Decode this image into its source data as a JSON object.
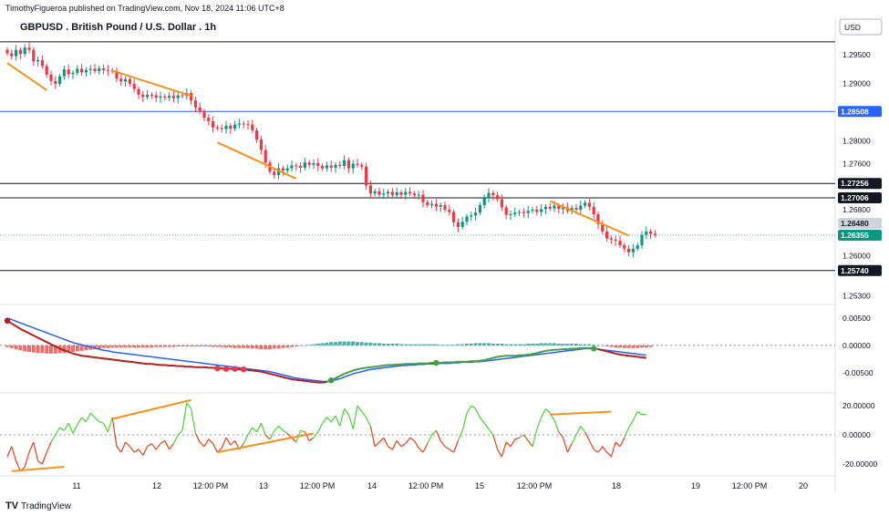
{
  "header": {
    "publisher": "TimothyFigueroa published on TradingView.com, Nov 18, 2024 11:06 UTC+8",
    "title": "GBPUSD . British Pound / U.S. Dollar . 1h",
    "currency_button": "USD"
  },
  "footer": {
    "brand": "TradingView",
    "logo_text": "TV"
  },
  "colors": {
    "up": "#089981",
    "down": "#f23645",
    "trend": "#f7931a",
    "blue_line": "#2962ff",
    "macd_signal": "#2962ff",
    "macd_line_up": "#43a047",
    "macd_line_down": "#b71c1c",
    "hist_up": "#26a69a",
    "hist_down": "#ef5350",
    "osc_up": "#4cd137",
    "osc_down": "#e84118",
    "current_price_tag": "#089981"
  },
  "chart_data": [
    {
      "type": "candlestick",
      "title": "GBPUSD . British Pound / U.S. Dollar . 1h",
      "ylim": [
        1.2515,
        1.2975
      ],
      "y_ticks": [
        "1.29500",
        "1.29000",
        "1.28000",
        "1.27600",
        "1.26800",
        "1.26000",
        "1.25300"
      ],
      "x_ticks": [
        "11",
        "12",
        "12:00 PM",
        "13",
        "12:00 PM",
        "14",
        "12:00 PM",
        "15",
        "12:00 PM",
        "18",
        "19",
        "12:00 PM",
        "20"
      ],
      "horizontal_levels": [
        {
          "value": 1.2972,
          "label": ""
        },
        {
          "value": 1.28508,
          "label": "1.28508"
        },
        {
          "value": 1.27256,
          "label": "1.27256"
        },
        {
          "value": 1.27006,
          "label": "1.27006"
        },
        {
          "value": 1.2574,
          "label": "1.25740"
        }
      ],
      "price_tags": {
        "previous_label": "1.26480",
        "current_label": "1.26355",
        "current_value": 1.26355
      },
      "trendlines": [
        {
          "start": [
            0,
            1.2935
          ],
          "end": [
            9,
            1.2888
          ]
        },
        {
          "start": [
            24,
            1.2922
          ],
          "end": [
            42,
            1.2878
          ]
        },
        {
          "start": [
            48,
            1.2797
          ],
          "end": [
            66,
            1.2734
          ]
        },
        {
          "start": [
            124,
            1.2695
          ],
          "end": [
            142,
            1.2635
          ]
        }
      ],
      "closes": [
        1.2952,
        1.2947,
        1.2958,
        1.2951,
        1.2962,
        1.2958,
        1.2938,
        1.294,
        1.293,
        1.2915,
        1.2904,
        1.2899,
        1.2912,
        1.2924,
        1.2916,
        1.2918,
        1.2925,
        1.2919,
        1.2923,
        1.2925,
        1.2921,
        1.2926,
        1.2923,
        1.2922,
        1.2921,
        1.2908,
        1.2903,
        1.2907,
        1.2899,
        1.289,
        1.288,
        1.2876,
        1.288,
        1.2879,
        1.2875,
        1.2877,
        1.2875,
        1.2878,
        1.2874,
        1.2879,
        1.2878,
        1.2883,
        1.287,
        1.2858,
        1.2851,
        1.284,
        1.2834,
        1.2823,
        1.2822,
        1.282,
        1.2826,
        1.2821,
        1.2828,
        1.283,
        1.2829,
        1.2828,
        1.2818,
        1.2802,
        1.2784,
        1.2762,
        1.2746,
        1.274,
        1.2752,
        1.2748,
        1.2752,
        1.2757,
        1.2756,
        1.2753,
        1.2762,
        1.2758,
        1.2761,
        1.2756,
        1.2752,
        1.2757,
        1.2753,
        1.2758,
        1.2756,
        1.2766,
        1.2752,
        1.276,
        1.2758,
        1.2755,
        1.2722,
        1.2708,
        1.2712,
        1.2706,
        1.2708,
        1.2711,
        1.2705,
        1.271,
        1.2706,
        1.2711,
        1.2708,
        1.2705,
        1.2706,
        1.2693,
        1.2688,
        1.269,
        1.2685,
        1.2688,
        1.268,
        1.2676,
        1.2658,
        1.265,
        1.2659,
        1.2668,
        1.267,
        1.2675,
        1.2688,
        1.27,
        1.2709,
        1.2705,
        1.2698,
        1.2684,
        1.2671,
        1.2672,
        1.2675,
        1.2676,
        1.2674,
        1.2678,
        1.268,
        1.2676,
        1.2681,
        1.2685,
        1.2682,
        1.2687,
        1.2681,
        1.2684,
        1.2678,
        1.2683,
        1.268,
        1.2687,
        1.2692,
        1.2685,
        1.2672,
        1.2655,
        1.2642,
        1.263,
        1.2628,
        1.2626,
        1.2618,
        1.2612,
        1.2606,
        1.2612,
        1.2618,
        1.2636,
        1.2642,
        1.2638,
        1.2636
      ]
    },
    {
      "type": "line",
      "name": "",
      "ylim": [
        -0.0082,
        0.0068
      ],
      "y_ticks": [
        "0.00500",
        "0.00000",
        "-0.00500"
      ],
      "signal_dots_x": [
        48,
        50,
        52,
        54,
        74,
        98,
        134
      ],
      "histogram": [
        -0.0003,
        -0.0005,
        -0.0007,
        -0.0009,
        -0.0011,
        -0.0012,
        -0.0013,
        -0.0014,
        -0.0014,
        -0.0015,
        -0.0015,
        -0.0015,
        -0.0014,
        -0.0014,
        -0.0013,
        -0.0012,
        -0.0011,
        -0.001,
        -0.0009,
        -0.0008,
        -0.0007,
        -0.0006,
        -0.0005,
        -0.0005,
        -0.0004,
        -0.0004,
        -0.0004,
        -0.0004,
        -0.0004,
        -0.0004,
        -0.0004,
        -0.0004,
        -0.0004,
        -0.0004,
        -0.0003,
        -0.0003,
        -0.0003,
        -0.0003,
        -0.0003,
        -0.0002,
        -0.0002,
        -0.0002,
        -0.0002,
        -0.0002,
        -0.0002,
        -0.0002,
        -0.0002,
        -0.0003,
        -0.0003,
        -0.0003,
        -0.0004,
        -0.0004,
        -0.0005,
        -0.0005,
        -0.0005,
        -0.0005,
        -0.0006,
        -0.0006,
        -0.0007,
        -0.0007,
        -0.0007,
        -0.0006,
        -0.0006,
        -0.0005,
        -0.0004,
        -0.0003,
        -0.0002,
        -0.0001,
        0.0,
        0.0001,
        0.0002,
        0.0003,
        0.0004,
        0.0005,
        0.0006,
        0.0006,
        0.0007,
        0.0007,
        0.0007,
        0.0007,
        0.0006,
        0.0006,
        0.0005,
        0.0005,
        0.0004,
        0.0004,
        0.0003,
        0.0003,
        0.0003,
        0.0003,
        0.0002,
        0.0002,
        0.0002,
        0.0002,
        0.0002,
        0.0002,
        0.0002,
        0.0002,
        0.0002,
        0.0001,
        0.0001,
        0.0001,
        0.0001,
        0.0002,
        0.0002,
        0.0003,
        0.0003,
        0.0004,
        0.0004,
        0.0004,
        0.0004,
        0.0003,
        0.0003,
        0.0003,
        0.0002,
        0.0002,
        0.0002,
        0.0002,
        0.0002,
        0.0003,
        0.0003,
        0.0003,
        0.0004,
        0.0004,
        0.0004,
        0.0004,
        0.0003,
        0.0003,
        0.0003,
        0.0003,
        0.0003,
        0.0002,
        0.0002,
        0.0002,
        0.0001,
        0.0,
        -0.0001,
        -0.0002,
        -0.0003,
        -0.0004,
        -0.0004,
        -0.0005,
        -0.0005,
        -0.0005,
        -0.0005,
        -0.0004,
        -0.0004,
        -0.0003
      ],
      "macd_line": [
        0.0045,
        0.004,
        0.0035,
        0.003,
        0.0026,
        0.0022,
        0.0018,
        0.0014,
        0.001,
        0.0006,
        0.0002,
        -0.0002,
        -0.0006,
        -0.0009,
        -0.0012,
        -0.0015,
        -0.0017,
        -0.0019,
        -0.002,
        -0.0021,
        -0.0022,
        -0.0023,
        -0.0024,
        -0.0025,
        -0.0026,
        -0.0027,
        -0.0028,
        -0.0029,
        -0.003,
        -0.0031,
        -0.0032,
        -0.0033,
        -0.0034,
        -0.0034,
        -0.0035,
        -0.0036,
        -0.0036,
        -0.0037,
        -0.0037,
        -0.0038,
        -0.0038,
        -0.0039,
        -0.0039,
        -0.004,
        -0.004,
        -0.004,
        -0.0041,
        -0.0041,
        -0.0042,
        -0.0042,
        -0.0043,
        -0.0043,
        -0.0043,
        -0.0044,
        -0.0044,
        -0.0045,
        -0.0046,
        -0.0047,
        -0.0048,
        -0.005,
        -0.0052,
        -0.0054,
        -0.0056,
        -0.0058,
        -0.006,
        -0.0062,
        -0.0063,
        -0.0064,
        -0.0065,
        -0.0066,
        -0.0067,
        -0.0068,
        -0.0068,
        -0.0067,
        -0.0064,
        -0.006,
        -0.0056,
        -0.0052,
        -0.0049,
        -0.0046,
        -0.0044,
        -0.0042,
        -0.0041,
        -0.004,
        -0.0039,
        -0.0038,
        -0.0037,
        -0.0036,
        -0.0036,
        -0.0035,
        -0.0035,
        -0.0034,
        -0.0034,
        -0.0034,
        -0.0033,
        -0.0033,
        -0.0033,
        -0.0032,
        -0.0032,
        -0.0032,
        -0.0031,
        -0.0031,
        -0.0031,
        -0.003,
        -0.003,
        -0.003,
        -0.0029,
        -0.0029,
        -0.0028,
        -0.0027,
        -0.0025,
        -0.0023,
        -0.0021,
        -0.002,
        -0.0019,
        -0.0019,
        -0.0019,
        -0.0018,
        -0.0018,
        -0.0017,
        -0.0016,
        -0.0014,
        -0.0012,
        -0.001,
        -0.0009,
        -0.0008,
        -0.0008,
        -0.0007,
        -0.0007,
        -0.0006,
        -0.0006,
        -0.0005,
        -0.0005,
        -0.0005,
        -0.0006,
        -0.0007,
        -0.0009,
        -0.0011,
        -0.0013,
        -0.0015,
        -0.0017,
        -0.0018,
        -0.0019,
        -0.002,
        -0.0021,
        -0.0022,
        -0.0023
      ],
      "signal_line": [
        0.005,
        0.0047,
        0.0044,
        0.0041,
        0.0038,
        0.0035,
        0.0032,
        0.0029,
        0.0026,
        0.0023,
        0.002,
        0.0017,
        0.0014,
        0.0011,
        0.0008,
        0.0005,
        0.0003,
        0.0001,
        -0.0001,
        -0.0003,
        -0.0005,
        -0.0007,
        -0.0009,
        -0.001,
        -0.0012,
        -0.0013,
        -0.0014,
        -0.0015,
        -0.0016,
        -0.0017,
        -0.0018,
        -0.0019,
        -0.002,
        -0.0021,
        -0.0022,
        -0.0023,
        -0.0024,
        -0.0025,
        -0.0026,
        -0.0027,
        -0.0028,
        -0.0029,
        -0.003,
        -0.0031,
        -0.0032,
        -0.0033,
        -0.0034,
        -0.0035,
        -0.0036,
        -0.0037,
        -0.0038,
        -0.0039,
        -0.004,
        -0.0041,
        -0.0042,
        -0.0043,
        -0.0044,
        -0.0045,
        -0.0046,
        -0.0047,
        -0.0048,
        -0.005,
        -0.0052,
        -0.0054,
        -0.0056,
        -0.0058,
        -0.006,
        -0.0061,
        -0.0062,
        -0.0063,
        -0.0064,
        -0.0065,
        -0.0066,
        -0.0066,
        -0.0065,
        -0.0063,
        -0.0061,
        -0.0058,
        -0.0055,
        -0.0052,
        -0.005,
        -0.0048,
        -0.0046,
        -0.0044,
        -0.0043,
        -0.0042,
        -0.0041,
        -0.004,
        -0.0039,
        -0.0038,
        -0.0037,
        -0.0037,
        -0.0036,
        -0.0036,
        -0.0035,
        -0.0035,
        -0.0034,
        -0.0034,
        -0.0034,
        -0.0033,
        -0.0033,
        -0.0033,
        -0.0032,
        -0.0032,
        -0.0031,
        -0.0031,
        -0.0031,
        -0.003,
        -0.003,
        -0.0029,
        -0.0028,
        -0.0027,
        -0.0026,
        -0.0025,
        -0.0024,
        -0.0023,
        -0.0022,
        -0.0021,
        -0.002,
        -0.0019,
        -0.0018,
        -0.0017,
        -0.0016,
        -0.0015,
        -0.0014,
        -0.0013,
        -0.0012,
        -0.0011,
        -0.001,
        -0.0009,
        -0.0008,
        -0.0007,
        -0.0006,
        -0.0006,
        -0.0006,
        -0.0007,
        -0.0008,
        -0.0009,
        -0.001,
        -0.0011,
        -0.0012,
        -0.0013,
        -0.0014,
        -0.0015,
        -0.0016,
        -0.0017,
        -0.0018
      ]
    },
    {
      "type": "line",
      "name": "",
      "ylim": [
        -27,
        27
      ],
      "y_ticks": [
        "20.00000",
        "0.00000",
        "-20.00000"
      ],
      "trendlines": [
        {
          "start": [
            1,
            -25
          ],
          "end": [
            13,
            -22
          ]
        },
        {
          "start": [
            24,
            11
          ],
          "end": [
            42,
            24
          ]
        },
        {
          "start": [
            48,
            -12
          ],
          "end": [
            70,
            1
          ]
        },
        {
          "start": [
            124,
            14
          ],
          "end": [
            138,
            16
          ]
        }
      ],
      "values": [
        -15,
        -8,
        -18,
        -25,
        -22,
        -12,
        -5,
        -18,
        -20,
        -12,
        -5,
        0,
        5,
        3,
        8,
        1,
        7,
        12,
        9,
        15,
        12,
        9,
        8,
        2,
        12,
        -8,
        -12,
        -5,
        -8,
        -12,
        -10,
        -14,
        -8,
        -6,
        -10,
        -6,
        -4,
        -10,
        -6,
        0,
        3,
        22,
        18,
        1,
        -5,
        -8,
        -3,
        -6,
        -12,
        -9,
        -2,
        -7,
        -4,
        -10,
        -6,
        0,
        5,
        2,
        8,
        0,
        -3,
        3,
        6,
        3,
        1,
        -2,
        -5,
        3,
        2,
        -4,
        -2,
        2,
        8,
        12,
        9,
        13,
        6,
        18,
        14,
        4,
        20,
        16,
        12,
        6,
        -8,
        -5,
        -2,
        -8,
        -10,
        -4,
        -8,
        -6,
        -2,
        -4,
        -9,
        -12,
        -6,
        0,
        3,
        -4,
        -8,
        -10,
        -12,
        -4,
        3,
        15,
        20,
        18,
        12,
        8,
        4,
        0,
        -10,
        -15,
        -5,
        -8,
        -3,
        -2,
        0,
        -4,
        -8,
        4,
        12,
        18,
        15,
        10,
        2,
        -2,
        -12,
        -6,
        0,
        6,
        2,
        -4,
        -10,
        -12,
        -8,
        -12,
        -15,
        -5,
        -8,
        -2,
        5,
        10,
        16,
        14,
        14
      ]
    }
  ]
}
